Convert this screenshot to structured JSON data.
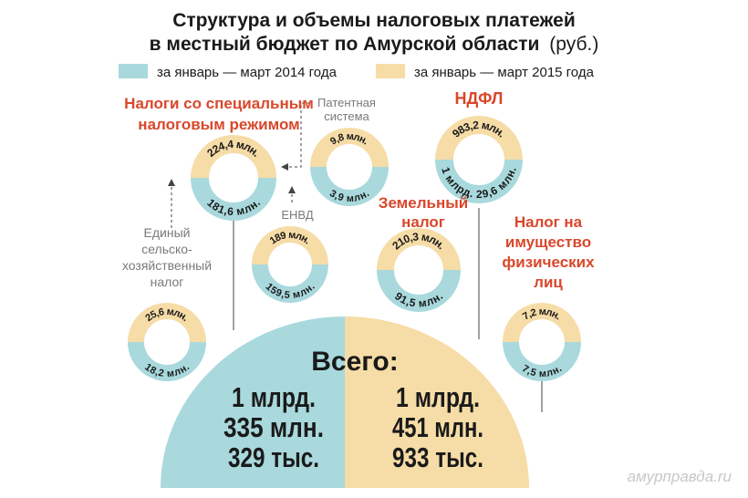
{
  "title": {
    "line1": "Структура и объемы налоговых платежей",
    "line2": "в местный бюджет по Амурской области",
    "unit": "(руб.)"
  },
  "legend": [
    {
      "label": "за январь — март 2014 года",
      "color": "#a9d9dd"
    },
    {
      "label": "за январь — март 2015 года",
      "color": "#f6dca7"
    }
  ],
  "colors": {
    "y2014": "#a9d9dd",
    "y2015": "#f6dca7",
    "accent": "#d9472b",
    "gray": "#7a7a7a",
    "text": "#1a1a1a"
  },
  "chart_data": {
    "type": "pie",
    "unit": "руб.",
    "series_names": [
      "за январь — март 2014 года",
      "за январь — март 2015 года"
    ],
    "items": [
      {
        "label": "Налоги со специальным налоговым режимом",
        "value_2014": "181,6 млн.",
        "value_2015": "224,4 млн.",
        "v2014": 181.6,
        "v2015": 224.4
      },
      {
        "label": "Патентная система",
        "value_2014": "3,9 млн.",
        "value_2015": "9,8 млн.",
        "v2014": 3.9,
        "v2015": 9.8
      },
      {
        "label": "НДФЛ",
        "value_2014": "1 млрд. 29,6 млн.",
        "value_2015": "983,2 млн.",
        "v2014": 1029.6,
        "v2015": 983.2
      },
      {
        "label": "ЕНВД",
        "value_2014": "159,5 млн.",
        "value_2015": "189 млн.",
        "v2014": 159.5,
        "v2015": 189
      },
      {
        "label": "Земельный налог",
        "value_2014": "91,5 млн.",
        "value_2015": "210,3 млн.",
        "v2014": 91.5,
        "v2015": 210.3
      },
      {
        "label": "Единый сельско-хозяйственный налог",
        "value_2014": "18,2 млн.",
        "value_2015": "25,6 млн.",
        "v2014": 18.2,
        "v2015": 25.6
      },
      {
        "label": "Налог на имущество физических лиц",
        "value_2014": "7,5 млн.",
        "value_2015": "7,2 млн.",
        "v2014": 7.5,
        "v2015": 7.2
      }
    ],
    "total": {
      "label": "Всего:",
      "value_2014": [
        "1 млрд.",
        "335 млн.",
        "329 тыс."
      ],
      "value_2015": [
        "1 млрд.",
        "451 млн.",
        "933 тыс."
      ]
    }
  },
  "labels": {
    "special": [
      "Налоги со специальным",
      "налоговым режимом"
    ],
    "patent": [
      "Патентная",
      "система"
    ],
    "ndfl": [
      "НДФЛ"
    ],
    "envd": [
      "ЕНВД"
    ],
    "land": [
      "Земельный",
      "налог"
    ],
    "eshn": [
      "Единый",
      "сельско-",
      "хозяйственный",
      "налог"
    ],
    "property": [
      "Налог на",
      "имущество",
      "физических",
      "лиц"
    ]
  },
  "rings": {
    "special": {
      "top": "224,4 млн.",
      "bottom": "181,6 млн."
    },
    "patent": {
      "top": "9,8 млн.",
      "bottom": "3,9 млн."
    },
    "ndfl": {
      "top": "983,2 млн.",
      "bottom": "1 млрд. 29,6 млн."
    },
    "envd": {
      "top": "189 млн.",
      "bottom": "159,5 млн."
    },
    "land": {
      "top": "210,3 млн.",
      "bottom": "91,5 млн."
    },
    "eshn": {
      "top": "25,6 млн.",
      "bottom": "18,2 млн."
    },
    "property": {
      "top": "7,2 млн.",
      "bottom": "7,5 млн."
    }
  },
  "watermark": "амурправда.ru"
}
